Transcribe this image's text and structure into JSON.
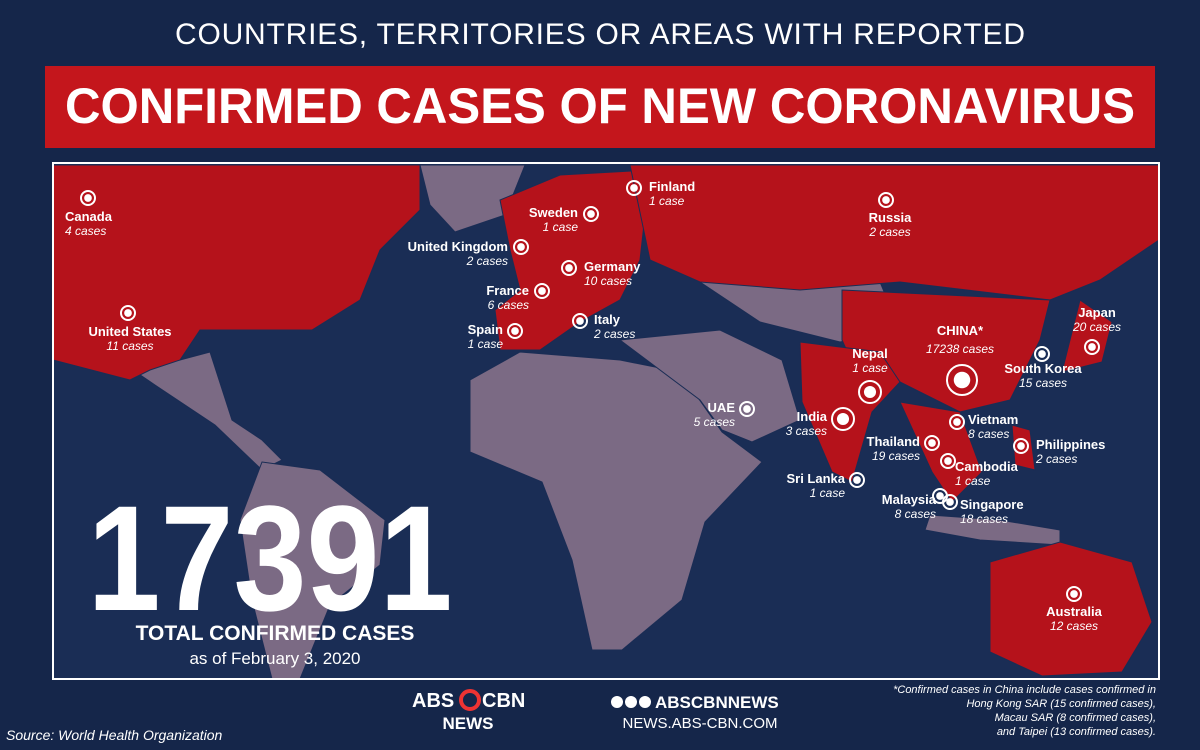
{
  "header": {
    "subtitle": "COUNTRIES, TERRITORIES OR AREAS WITH REPORTED",
    "title": "CONFIRMED CASES OF NEW CORONAVIRUS"
  },
  "countries": [
    {
      "name": "Canada",
      "cases": "4 cases"
    },
    {
      "name": "United States",
      "cases": "11 cases"
    },
    {
      "name": "United Kingdom",
      "cases": "2 cases"
    },
    {
      "name": "Sweden",
      "cases": "1 case"
    },
    {
      "name": "Finland",
      "cases": "1 case"
    },
    {
      "name": "Germany",
      "cases": "10 cases"
    },
    {
      "name": "France",
      "cases": "6 cases"
    },
    {
      "name": "Italy",
      "cases": "2 cases"
    },
    {
      "name": "Spain",
      "cases": "1 case"
    },
    {
      "name": "Russia",
      "cases": "2 cases"
    },
    {
      "name": "UAE",
      "cases": "5 cases"
    },
    {
      "name": "India",
      "cases": "3 cases"
    },
    {
      "name": "Nepal",
      "cases": "1 case"
    },
    {
      "name": "Sri Lanka",
      "cases": "1 case"
    },
    {
      "name": "CHINA*",
      "cases": "17238 cases"
    },
    {
      "name": "Japan",
      "cases": "20 cases"
    },
    {
      "name": "South Korea",
      "cases": "15 cases"
    },
    {
      "name": "Vietnam",
      "cases": "8 cases"
    },
    {
      "name": "Thailand",
      "cases": "19 cases"
    },
    {
      "name": "Cambodia",
      "cases": "1 case"
    },
    {
      "name": "Philippines",
      "cases": "2 cases"
    },
    {
      "name": "Malaysia",
      "cases": "8 cases"
    },
    {
      "name": "Singapore",
      "cases": "18 cases"
    },
    {
      "name": "Australia",
      "cases": "12 cases"
    }
  ],
  "total": {
    "value": "17391",
    "label": "TOTAL CONFIRMED CASES",
    "date": "as of February 3, 2020"
  },
  "footer": {
    "source": "Source: World Health Organization",
    "logo": {
      "abs": "ABS",
      "cbn": "CBN",
      "news": "NEWS"
    },
    "social": "ABSCBNNEWS",
    "website": "NEWS.ABS-CBN.COM",
    "note": [
      "*Confirmed cases in China include cases confirmed in",
      "Hong Kong SAR (15 confirmed cases),",
      "Macau SAR (8 confirmed cases),",
      "and Taipei (13 confirmed cases)."
    ]
  }
}
